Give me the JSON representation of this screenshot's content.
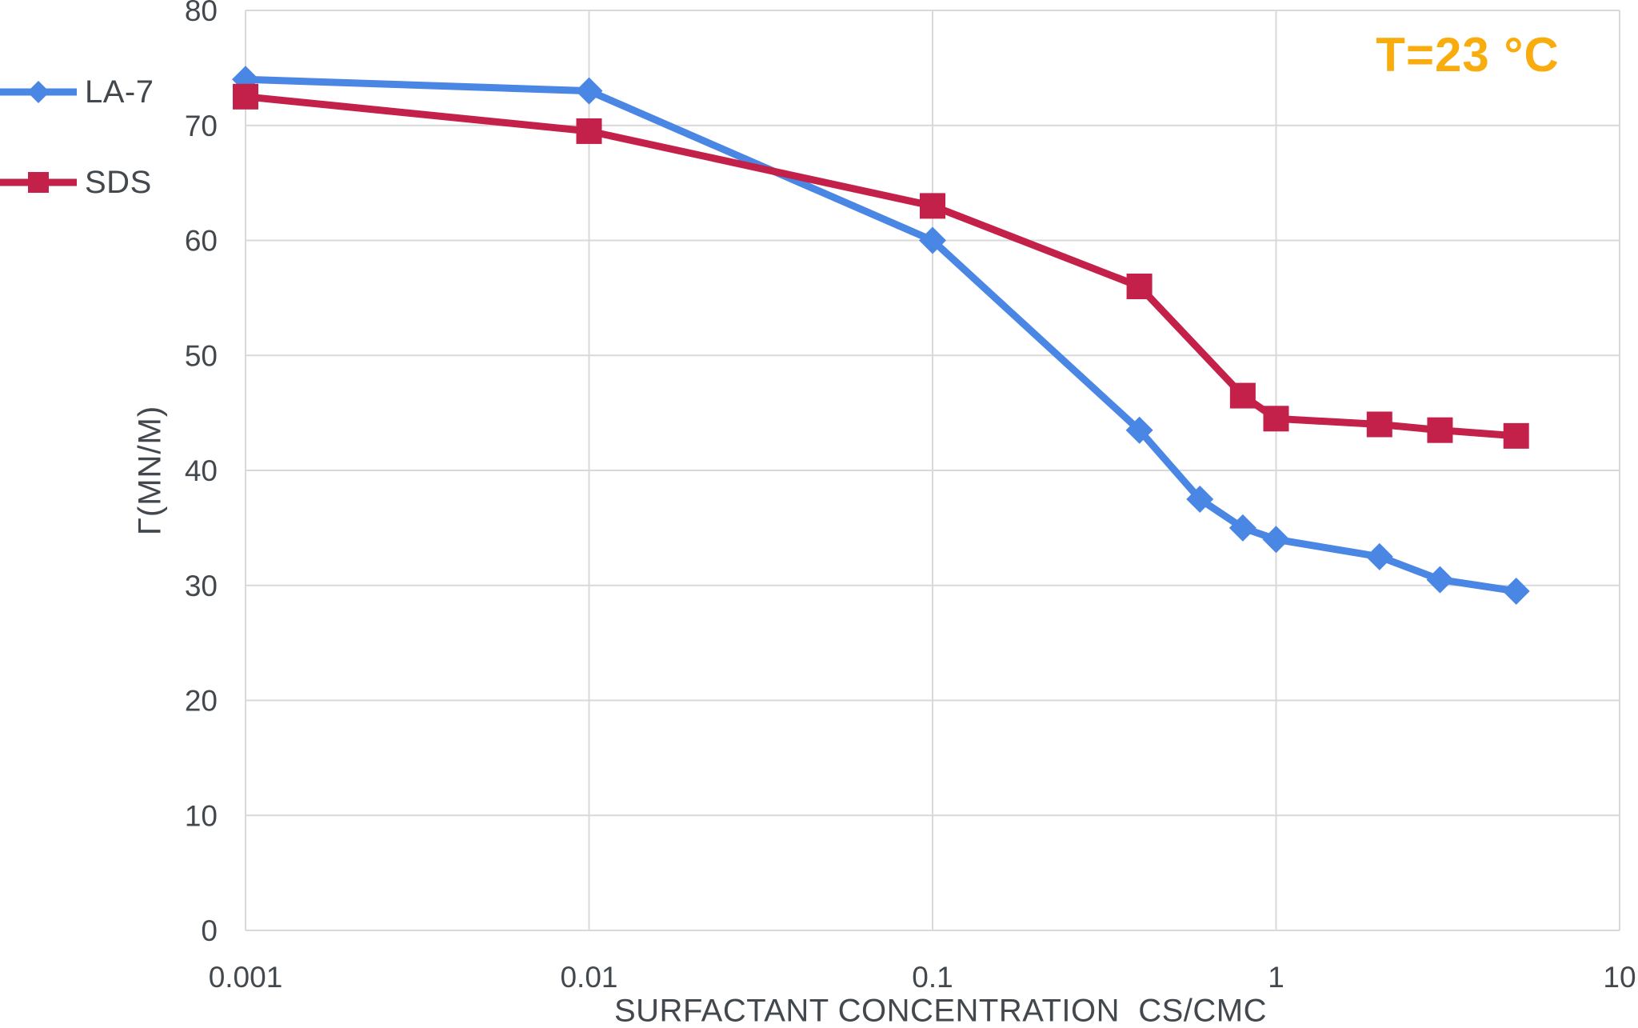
{
  "chart_data": {
    "type": "line",
    "title": "",
    "annotation": "T=23 °C",
    "xlabel": "SURFACTANT CONCENTRATION  CS/CMC",
    "ylabel": "Γ(MN/M)",
    "x_scale": "log",
    "xlim": [
      0.001,
      10
    ],
    "ylim": [
      0,
      80
    ],
    "grid": true,
    "x_ticks": [
      0.001,
      0.01,
      0.1,
      1,
      10
    ],
    "x_tick_labels": [
      "0.001",
      "0.01",
      "0.1",
      "1",
      "10"
    ],
    "y_ticks": [
      0,
      10,
      20,
      30,
      40,
      50,
      60,
      70,
      80
    ],
    "y_tick_labels": [
      "0",
      "10",
      "20",
      "30",
      "40",
      "50",
      "60",
      "70",
      "80"
    ],
    "legend_position": "outside-left-top",
    "colors": {
      "grid": "#d9d9d9",
      "text": "#42484d",
      "annotation": "#f9ac0d",
      "la7_blue": "#4a86e4",
      "sds_red": "#c32149"
    },
    "series": [
      {
        "name": "LA-7",
        "color": "#4a86e4",
        "marker": "diamond",
        "points": [
          [
            0.001,
            74
          ],
          [
            0.01,
            73
          ],
          [
            0.1,
            60
          ],
          [
            0.4,
            43.5
          ],
          [
            0.6,
            37.5
          ],
          [
            0.8,
            35
          ],
          [
            1,
            34
          ],
          [
            2,
            32.5
          ],
          [
            3,
            30.5
          ],
          [
            5,
            29.5
          ]
        ]
      },
      {
        "name": "SDS",
        "color": "#c32149",
        "marker": "square",
        "points": [
          [
            0.001,
            72.5
          ],
          [
            0.01,
            69.5
          ],
          [
            0.1,
            63
          ],
          [
            0.4,
            56
          ],
          [
            0.8,
            46.5
          ],
          [
            1,
            44.5
          ],
          [
            2,
            44
          ],
          [
            3,
            43.5
          ],
          [
            5,
            43
          ]
        ]
      }
    ]
  }
}
